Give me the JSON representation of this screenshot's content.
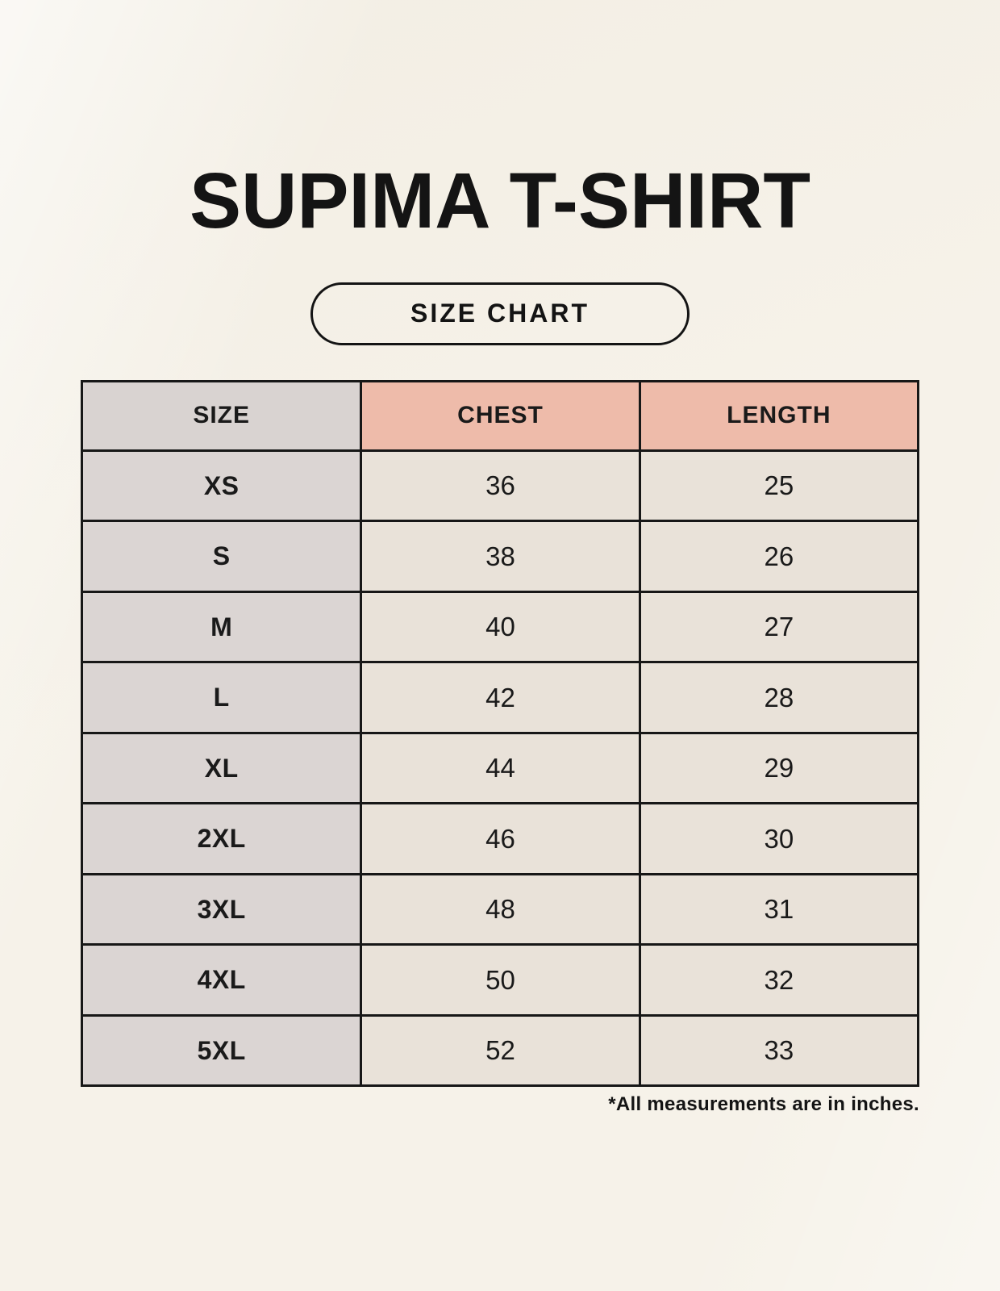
{
  "title": "SUPIMA T-SHIRT",
  "badge_label": "SIZE CHART",
  "footnote": "*All measurements are in inches.",
  "colors": {
    "background": "#f6f2e9",
    "size_column_fill": "#dbd5d3",
    "measure_header_fill": "#eebbaa",
    "value_cell_fill": "#e9e2d9",
    "border": "#171717",
    "text": "#141414"
  },
  "chart_data": {
    "type": "table",
    "title": "SUPIMA T-SHIRT",
    "columns": [
      "SIZE",
      "CHEST",
      "LENGTH"
    ],
    "rows": [
      [
        "XS",
        "36",
        "25"
      ],
      [
        "S",
        "38",
        "26"
      ],
      [
        "M",
        "40",
        "27"
      ],
      [
        "L",
        "42",
        "28"
      ],
      [
        "XL",
        "44",
        "29"
      ],
      [
        "2XL",
        "46",
        "30"
      ],
      [
        "3XL",
        "48",
        "31"
      ],
      [
        "4XL",
        "50",
        "32"
      ],
      [
        "5XL",
        "52",
        "33"
      ]
    ],
    "units_note": "*All measurements are in inches.",
    "layout": "header row tinted salmon for CHEST/LENGTH, size column tinted gray, black grid borders"
  }
}
